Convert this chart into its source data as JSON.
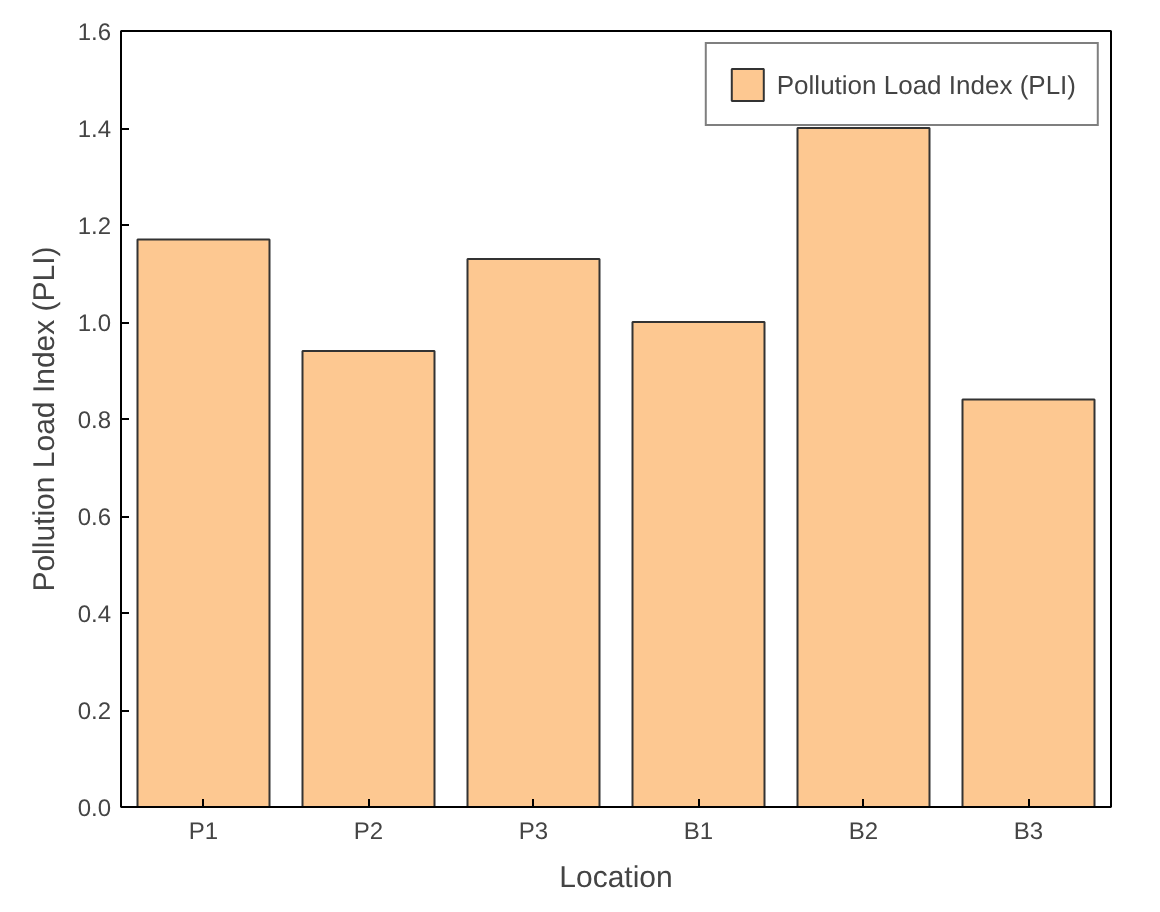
{
  "chart_data": {
    "type": "bar",
    "xlabel": "Location",
    "ylabel": "Pollution Load Index (PLI)",
    "categories": [
      "P1",
      "P2",
      "P3",
      "B1",
      "B2",
      "B3"
    ],
    "series": [
      {
        "name": "Pollution Load Index (PLI)",
        "color": "#fdc891",
        "values": [
          1.17,
          0.94,
          1.13,
          1.0,
          1.4,
          0.84
        ]
      }
    ],
    "ylim": [
      0,
      1.6
    ],
    "yticks": [
      {
        "value": 0,
        "label": "0.0"
      },
      0.2,
      0.4,
      0.6,
      0.8,
      {
        "value": 1,
        "label": "1.0"
      },
      1.2,
      1.4,
      1.6
    ],
    "grid": false,
    "legend": "top right"
  }
}
